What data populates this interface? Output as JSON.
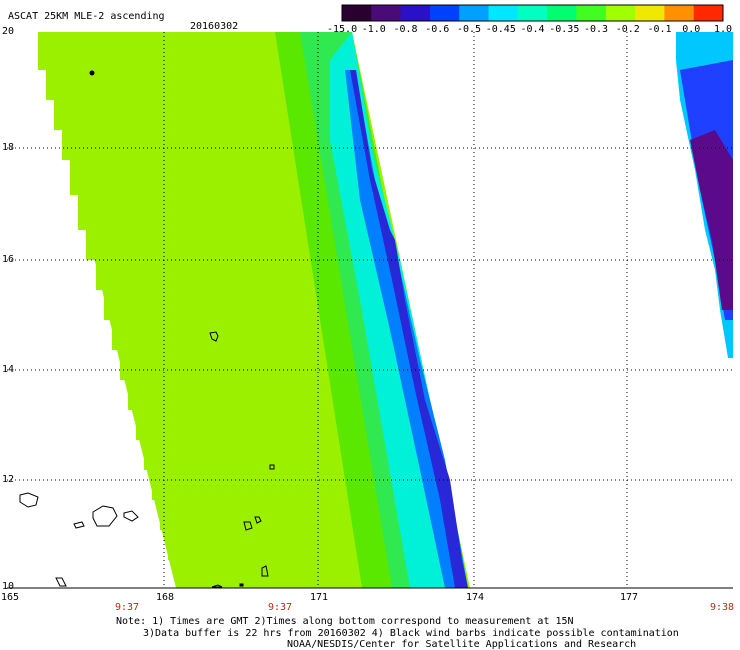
{
  "title": "ASCAT 25KM MLE-2 ascending",
  "date": "20160302",
  "colorbar": {
    "labels": [
      "-15.0",
      "-1.0",
      "-0.8",
      "-0.6",
      "-0.5",
      "-0.45",
      "-0.4",
      "-0.35",
      "-0.3",
      "-0.2",
      "-0.1",
      "0.0",
      "1.0"
    ],
    "colors": [
      "#2a0030",
      "#4a0a78",
      "#2a10c8",
      "#0040ff",
      "#00a0ff",
      "#00e8ff",
      "#00ffc0",
      "#00ff70",
      "#40ff20",
      "#a0ff00",
      "#f0e800",
      "#ff9000",
      "#ff2800"
    ]
  },
  "axes": {
    "lat_labels": [
      "20",
      "18",
      "16",
      "14",
      "12",
      "10"
    ],
    "lon_labels": [
      "165",
      "168",
      "171",
      "174",
      "177"
    ]
  },
  "times": [
    "9:37",
    "9:37",
    "9:38"
  ],
  "notes": {
    "line1": "Note: 1) Times are GMT 2)Times along bottom correspond to measurement at 15N",
    "line2": "3)Data buffer is 22 hrs from 20160302 4) Black wind barbs indicate possible contamination",
    "line3": "NOAA/NESDIS/Center for Satellite Applications and Research"
  }
}
